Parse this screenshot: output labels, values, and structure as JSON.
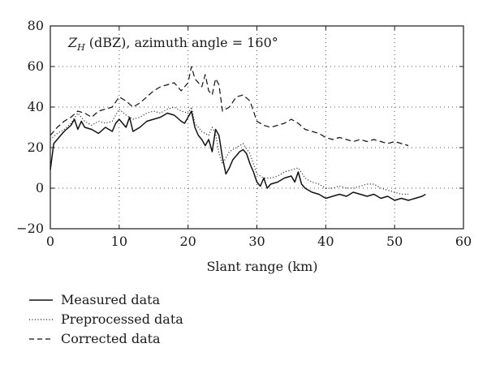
{
  "chart_data": {
    "type": "line",
    "title_symbol": "Z",
    "title_subscript": "H",
    "title_rest": " (dBZ), azimuth angle = 160°",
    "xlabel": "Slant range (km)",
    "ylabel": "",
    "xlim": [
      0,
      60
    ],
    "ylim": [
      -20,
      80
    ],
    "xticks": [
      "0",
      "10",
      "20",
      "30",
      "40",
      "50",
      "60"
    ],
    "yticks": [
      "−20",
      "0",
      "20",
      "40",
      "60",
      "80"
    ],
    "grid": "dotted",
    "legend_position": "below-left",
    "series": [
      {
        "name": "Measured data",
        "style": "solid",
        "x": [
          0,
          0.5,
          1,
          1.5,
          2,
          3,
          3.5,
          4,
          4.5,
          5,
          6,
          7,
          8,
          9,
          9.5,
          10,
          11,
          11.5,
          12,
          13,
          14,
          15,
          16,
          17,
          18,
          19,
          19.5,
          20,
          20.5,
          21,
          21.5,
          22,
          22.5,
          23,
          23.5,
          24,
          24.5,
          25,
          25.5,
          26,
          26.5,
          27,
          27.5,
          28,
          28.5,
          29,
          29.5,
          30,
          30.5,
          31,
          31.5,
          32,
          33,
          34,
          35,
          35.5,
          36,
          36.5,
          37,
          38,
          39,
          40,
          41,
          42,
          43,
          44,
          45,
          46,
          47,
          48,
          49,
          50,
          51,
          52,
          53,
          54,
          54.5
        ],
        "y": [
          9,
          22,
          24,
          26,
          28,
          31,
          34,
          29,
          33,
          30,
          29,
          27,
          30,
          28,
          32,
          34,
          30,
          35,
          28,
          30,
          33,
          34,
          35,
          37,
          36,
          33,
          32,
          35,
          38,
          30,
          26,
          24,
          21,
          24,
          18,
          29,
          26,
          15,
          7,
          10,
          14,
          16,
          18,
          19,
          17,
          12,
          8,
          3,
          1,
          5,
          0,
          2,
          3,
          5,
          6,
          3,
          8,
          2,
          0,
          -2,
          -3,
          -5,
          -4,
          -3,
          -4,
          -2,
          -3,
          -4,
          -3,
          -5,
          -4,
          -6,
          -5,
          -6,
          -5,
          -4,
          -3
        ]
      },
      {
        "name": "Preprocessed data",
        "style": "dotted",
        "x": [
          0,
          1,
          2,
          3,
          4,
          5,
          6,
          7,
          8,
          9,
          10,
          11,
          12,
          13,
          14,
          15,
          16,
          17,
          18,
          19,
          20,
          20.5,
          21,
          22,
          23,
          23.5,
          24,
          24.5,
          25,
          25.5,
          26,
          27,
          28,
          29,
          30,
          31,
          32,
          33,
          34,
          35,
          36,
          37,
          38,
          39,
          40,
          41,
          42,
          43,
          44,
          45,
          46,
          47,
          48,
          49,
          50,
          51,
          52
        ],
        "y": [
          24,
          27,
          29,
          32,
          37,
          33,
          31,
          33,
          32,
          33,
          39,
          36,
          34,
          35,
          37,
          38,
          37,
          39,
          40,
          38,
          37,
          40,
          32,
          28,
          26,
          30,
          27,
          17,
          12,
          15,
          18,
          20,
          22,
          17,
          7,
          5,
          5,
          6,
          8,
          9,
          10,
          5,
          3,
          2,
          0,
          0,
          1,
          0,
          0,
          1,
          2,
          2,
          0,
          -1,
          -2,
          -3,
          -3
        ]
      },
      {
        "name": "Corrected data",
        "style": "dashed",
        "x": [
          0,
          1,
          2,
          3,
          4,
          5,
          6,
          7,
          8,
          9,
          10,
          11,
          12,
          13,
          14,
          15,
          16,
          17,
          18,
          19,
          20,
          20.5,
          21,
          22,
          22.5,
          23,
          23.5,
          24,
          24.5,
          25,
          26,
          27,
          28,
          29,
          30,
          31,
          32,
          33,
          34,
          35,
          36,
          37,
          38,
          39,
          40,
          41,
          42,
          43,
          44,
          45,
          46,
          47,
          48,
          49,
          50,
          51,
          52
        ],
        "y": [
          26,
          30,
          33,
          35,
          38,
          37,
          35,
          38,
          39,
          40,
          45,
          43,
          40,
          42,
          45,
          48,
          50,
          51,
          52,
          48,
          52,
          60,
          54,
          50,
          56,
          48,
          46,
          54,
          51,
          38,
          40,
          45,
          46,
          43,
          33,
          31,
          30,
          31,
          32,
          34,
          32,
          29,
          28,
          27,
          25,
          24,
          25,
          24,
          23,
          24,
          23,
          24,
          23,
          22,
          23,
          22,
          21
        ]
      }
    ]
  }
}
